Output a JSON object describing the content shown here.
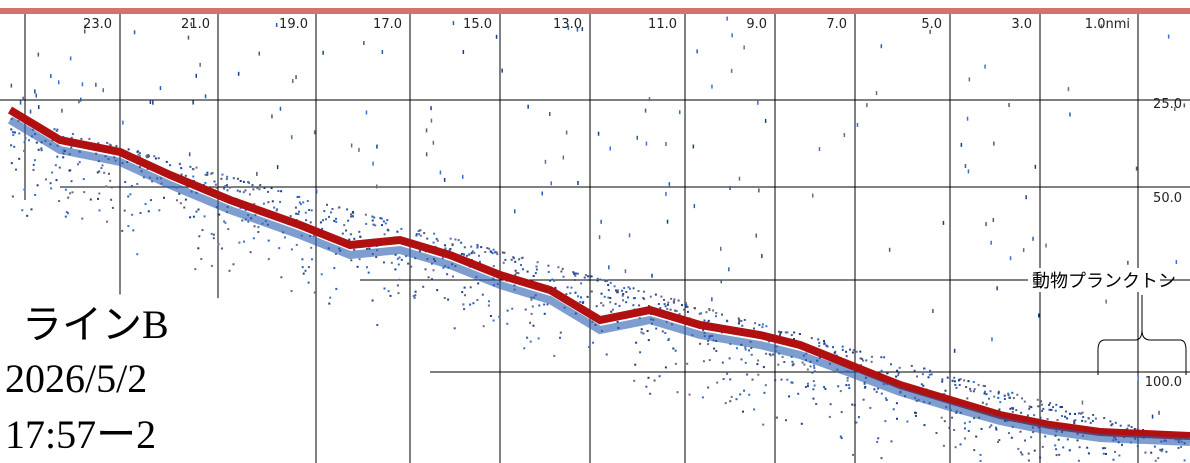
{
  "distance_labels": [
    "23.0",
    "21.0",
    "19.0",
    "17.0",
    "15.0",
    "13.0",
    "11.0",
    "9.0",
    "7.0",
    "5.0",
    "3.0",
    "1.0nmi"
  ],
  "depth_labels": [
    "25.0",
    "50.0",
    "100.0"
  ],
  "annotation": "動物プランクトン",
  "line_name": "ラインB",
  "date": "2026/5/2",
  "time": "17:57ー2"
}
